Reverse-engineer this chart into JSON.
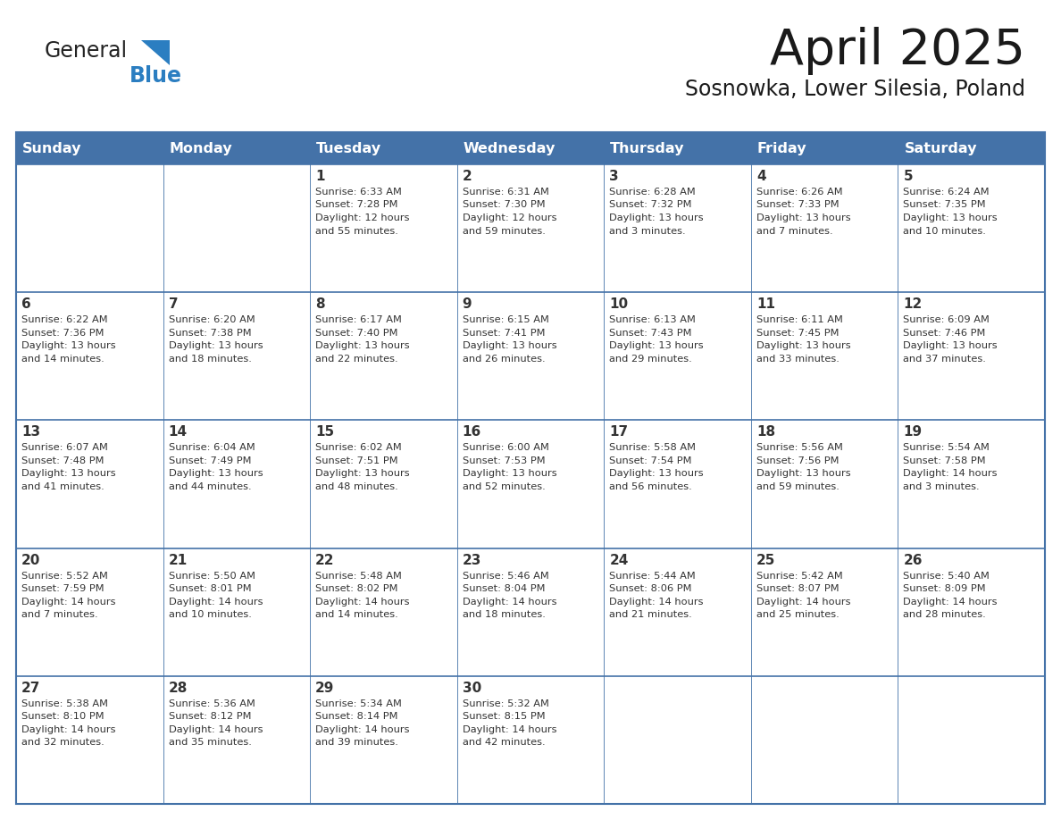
{
  "title": "April 2025",
  "subtitle": "Sosnowka, Lower Silesia, Poland",
  "days_of_week": [
    "Sunday",
    "Monday",
    "Tuesday",
    "Wednesday",
    "Thursday",
    "Friday",
    "Saturday"
  ],
  "header_bg": "#4472a8",
  "header_text_color": "#FFFFFF",
  "row_bg": "#FFFFFF",
  "last_row_bg": "#F0F0F0",
  "cell_border_color": "#4472a8",
  "text_color": "#333333",
  "calendar_data": [
    [
      null,
      null,
      {
        "day": 1,
        "sunrise": "6:33 AM",
        "sunset": "7:28 PM",
        "daylight": "12 hours",
        "daylight2": "and 55 minutes."
      },
      {
        "day": 2,
        "sunrise": "6:31 AM",
        "sunset": "7:30 PM",
        "daylight": "12 hours",
        "daylight2": "and 59 minutes."
      },
      {
        "day": 3,
        "sunrise": "6:28 AM",
        "sunset": "7:32 PM",
        "daylight": "13 hours",
        "daylight2": "and 3 minutes."
      },
      {
        "day": 4,
        "sunrise": "6:26 AM",
        "sunset": "7:33 PM",
        "daylight": "13 hours",
        "daylight2": "and 7 minutes."
      },
      {
        "day": 5,
        "sunrise": "6:24 AM",
        "sunset": "7:35 PM",
        "daylight": "13 hours",
        "daylight2": "and 10 minutes."
      }
    ],
    [
      {
        "day": 6,
        "sunrise": "6:22 AM",
        "sunset": "7:36 PM",
        "daylight": "13 hours",
        "daylight2": "and 14 minutes."
      },
      {
        "day": 7,
        "sunrise": "6:20 AM",
        "sunset": "7:38 PM",
        "daylight": "13 hours",
        "daylight2": "and 18 minutes."
      },
      {
        "day": 8,
        "sunrise": "6:17 AM",
        "sunset": "7:40 PM",
        "daylight": "13 hours",
        "daylight2": "and 22 minutes."
      },
      {
        "day": 9,
        "sunrise": "6:15 AM",
        "sunset": "7:41 PM",
        "daylight": "13 hours",
        "daylight2": "and 26 minutes."
      },
      {
        "day": 10,
        "sunrise": "6:13 AM",
        "sunset": "7:43 PM",
        "daylight": "13 hours",
        "daylight2": "and 29 minutes."
      },
      {
        "day": 11,
        "sunrise": "6:11 AM",
        "sunset": "7:45 PM",
        "daylight": "13 hours",
        "daylight2": "and 33 minutes."
      },
      {
        "day": 12,
        "sunrise": "6:09 AM",
        "sunset": "7:46 PM",
        "daylight": "13 hours",
        "daylight2": "and 37 minutes."
      }
    ],
    [
      {
        "day": 13,
        "sunrise": "6:07 AM",
        "sunset": "7:48 PM",
        "daylight": "13 hours",
        "daylight2": "and 41 minutes."
      },
      {
        "day": 14,
        "sunrise": "6:04 AM",
        "sunset": "7:49 PM",
        "daylight": "13 hours",
        "daylight2": "and 44 minutes."
      },
      {
        "day": 15,
        "sunrise": "6:02 AM",
        "sunset": "7:51 PM",
        "daylight": "13 hours",
        "daylight2": "and 48 minutes."
      },
      {
        "day": 16,
        "sunrise": "6:00 AM",
        "sunset": "7:53 PM",
        "daylight": "13 hours",
        "daylight2": "and 52 minutes."
      },
      {
        "day": 17,
        "sunrise": "5:58 AM",
        "sunset": "7:54 PM",
        "daylight": "13 hours",
        "daylight2": "and 56 minutes."
      },
      {
        "day": 18,
        "sunrise": "5:56 AM",
        "sunset": "7:56 PM",
        "daylight": "13 hours",
        "daylight2": "and 59 minutes."
      },
      {
        "day": 19,
        "sunrise": "5:54 AM",
        "sunset": "7:58 PM",
        "daylight": "14 hours",
        "daylight2": "and 3 minutes."
      }
    ],
    [
      {
        "day": 20,
        "sunrise": "5:52 AM",
        "sunset": "7:59 PM",
        "daylight": "14 hours",
        "daylight2": "and 7 minutes."
      },
      {
        "day": 21,
        "sunrise": "5:50 AM",
        "sunset": "8:01 PM",
        "daylight": "14 hours",
        "daylight2": "and 10 minutes."
      },
      {
        "day": 22,
        "sunrise": "5:48 AM",
        "sunset": "8:02 PM",
        "daylight": "14 hours",
        "daylight2": "and 14 minutes."
      },
      {
        "day": 23,
        "sunrise": "5:46 AM",
        "sunset": "8:04 PM",
        "daylight": "14 hours",
        "daylight2": "and 18 minutes."
      },
      {
        "day": 24,
        "sunrise": "5:44 AM",
        "sunset": "8:06 PM",
        "daylight": "14 hours",
        "daylight2": "and 21 minutes."
      },
      {
        "day": 25,
        "sunrise": "5:42 AM",
        "sunset": "8:07 PM",
        "daylight": "14 hours",
        "daylight2": "and 25 minutes."
      },
      {
        "day": 26,
        "sunrise": "5:40 AM",
        "sunset": "8:09 PM",
        "daylight": "14 hours",
        "daylight2": "and 28 minutes."
      }
    ],
    [
      {
        "day": 27,
        "sunrise": "5:38 AM",
        "sunset": "8:10 PM",
        "daylight": "14 hours",
        "daylight2": "and 32 minutes."
      },
      {
        "day": 28,
        "sunrise": "5:36 AM",
        "sunset": "8:12 PM",
        "daylight": "14 hours",
        "daylight2": "and 35 minutes."
      },
      {
        "day": 29,
        "sunrise": "5:34 AM",
        "sunset": "8:14 PM",
        "daylight": "14 hours",
        "daylight2": "and 39 minutes."
      },
      {
        "day": 30,
        "sunrise": "5:32 AM",
        "sunset": "8:15 PM",
        "daylight": "14 hours",
        "daylight2": "and 42 minutes."
      },
      null,
      null,
      null
    ]
  ],
  "logo_color1": "#222222",
  "logo_color2": "#2B7EC1",
  "logo_triangle_color": "#2B7EC1",
  "title_color": "#1a1a1a",
  "subtitle_color": "#1a1a1a"
}
